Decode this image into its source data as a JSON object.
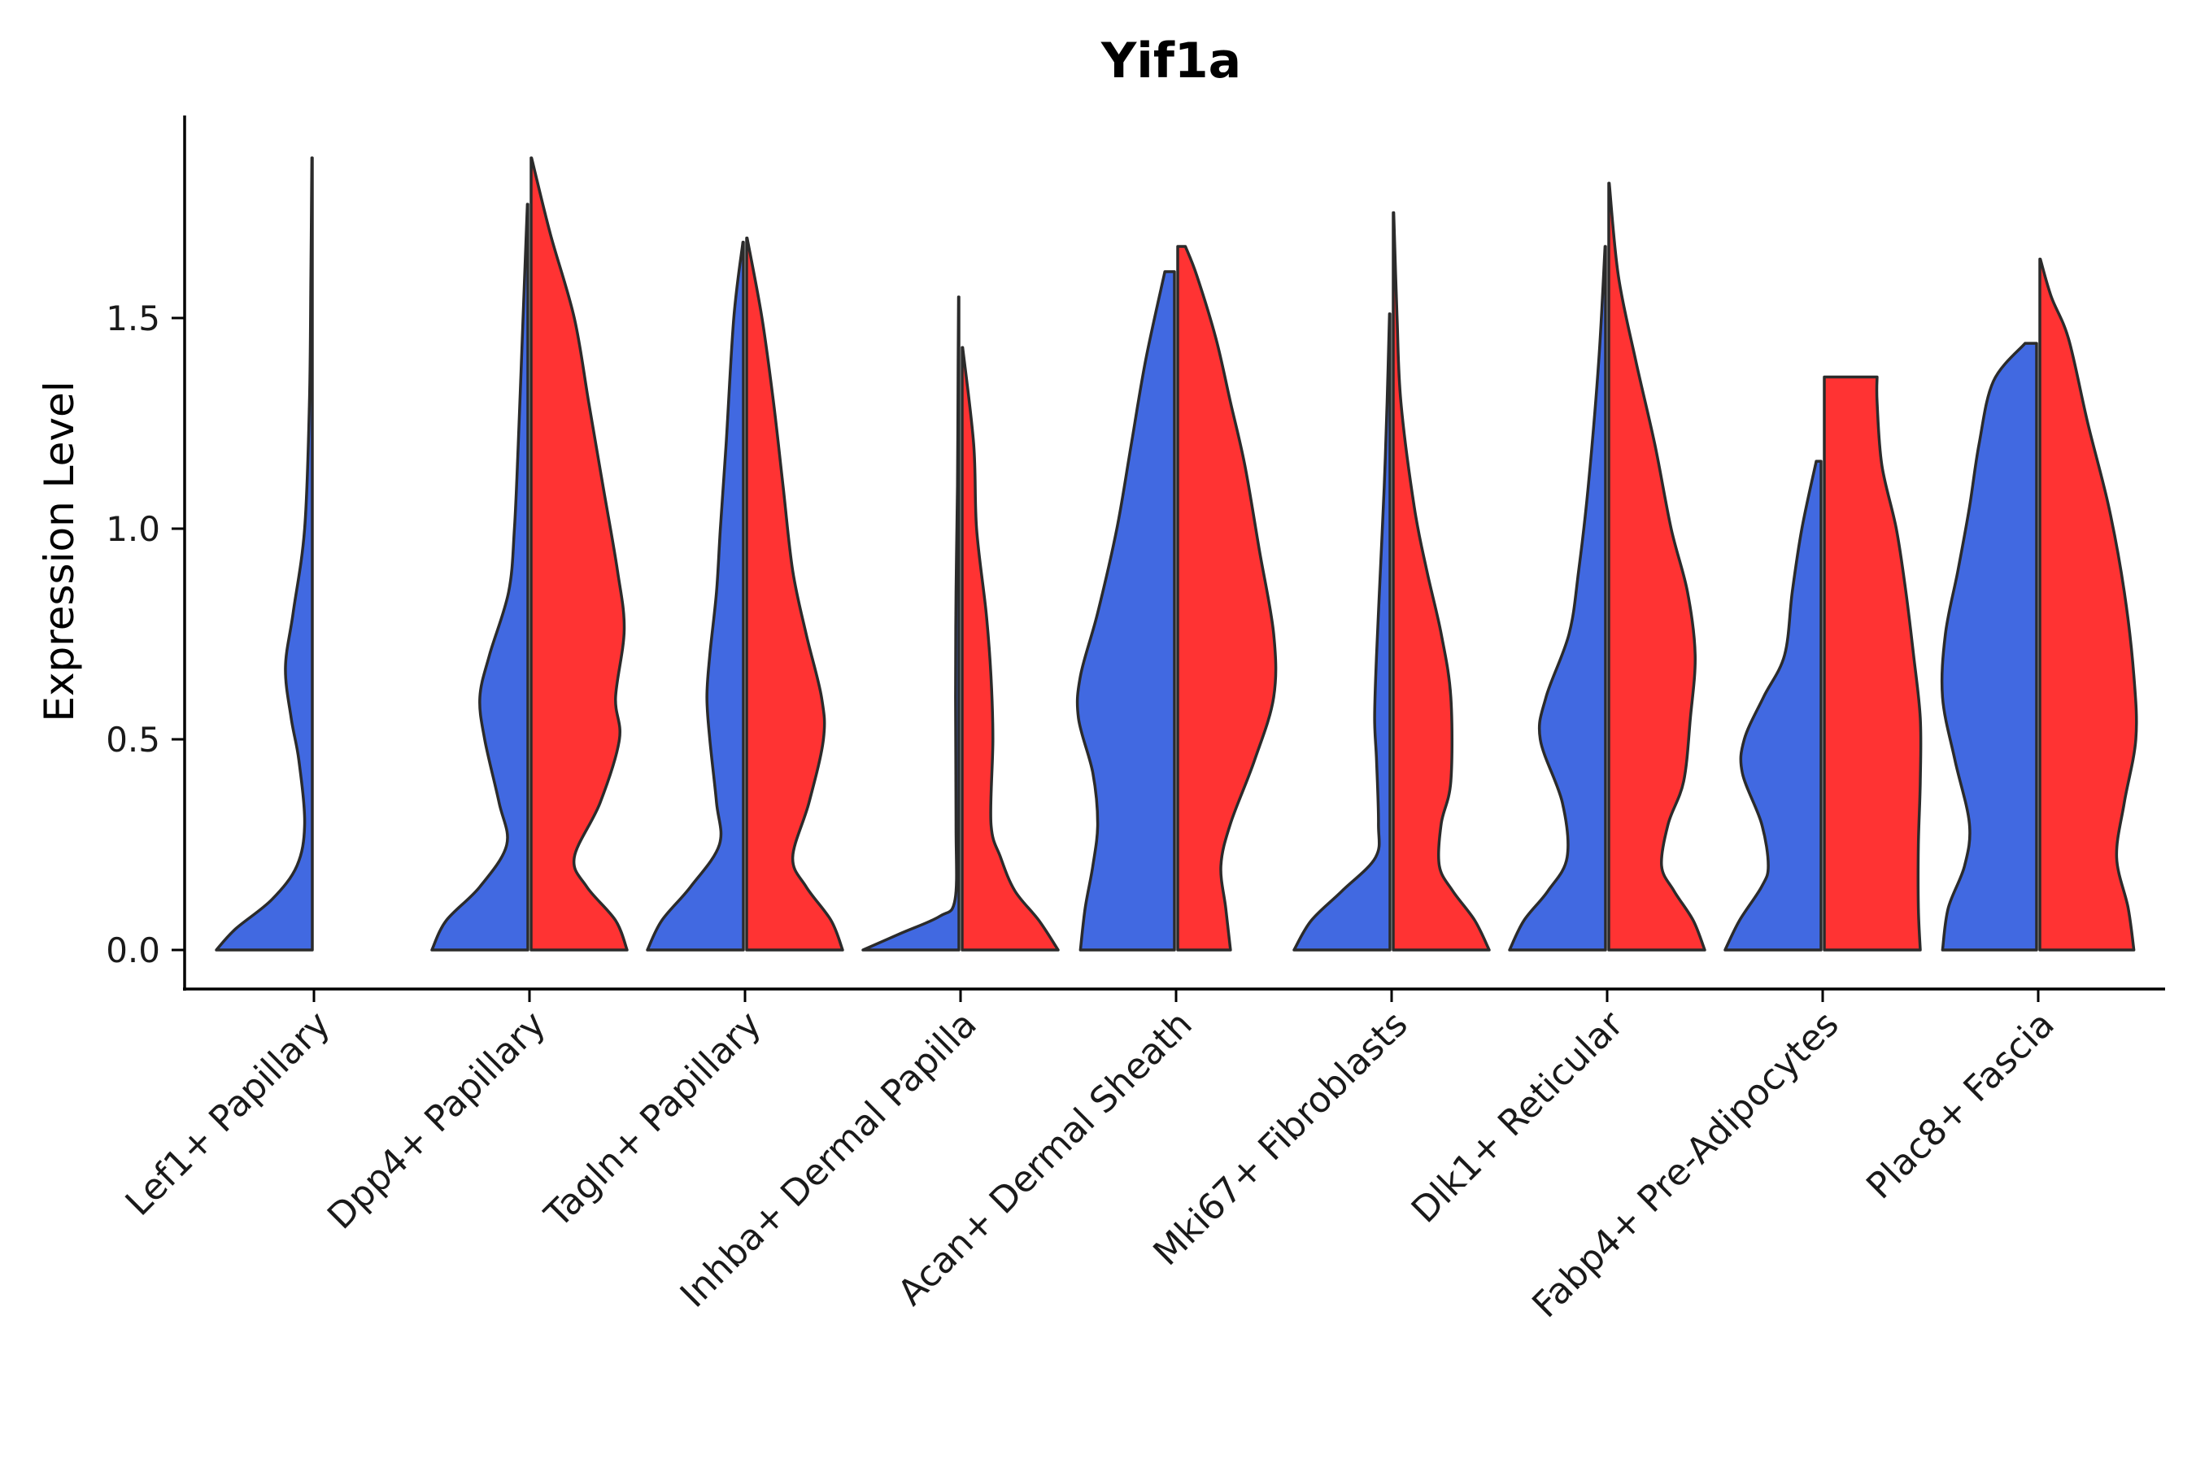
{
  "chart_data": {
    "type": "violin",
    "title": "Yif1a",
    "xlabel": "",
    "ylabel": "Expression Level",
    "ylim": [
      -0.1,
      1.97
    ],
    "yticks": [
      0.0,
      0.5,
      1.0,
      1.5
    ],
    "ytick_labels": [
      "0.0",
      "0.5",
      "1.0",
      "1.5"
    ],
    "categories": [
      "Lef1+ Papillary",
      "Dpp4+ Papillary",
      "Tagln+ Papillary",
      "Inhba+ Dermal Papilla",
      "Acan+ Dermal Sheath",
      "Mki67+ Fibroblasts",
      "Dlk1+ Reticular",
      "Fabp4+ Pre-Adipocytes",
      "Plac8+ Fascia"
    ],
    "groups": [
      {
        "name": "group1",
        "color": "#4169e1"
      },
      {
        "name": "group2",
        "color": "#ff3333"
      }
    ],
    "violins": [
      {
        "category": 0,
        "group": 0,
        "max": 1.88,
        "profile": [
          [
            0,
            1
          ],
          [
            0.05,
            0.8
          ],
          [
            0.12,
            0.42
          ],
          [
            0.2,
            0.16
          ],
          [
            0.3,
            0.08
          ],
          [
            0.45,
            0.14
          ],
          [
            0.55,
            0.22
          ],
          [
            0.67,
            0.28
          ],
          [
            0.8,
            0.2
          ],
          [
            1.0,
            0.08
          ],
          [
            1.3,
            0.03
          ],
          [
            1.6,
            0.015
          ],
          [
            1.88,
            0.005
          ]
        ]
      },
      {
        "category": 1,
        "group": 0,
        "max": 1.77,
        "profile": [
          [
            0,
            1
          ],
          [
            0.07,
            0.85
          ],
          [
            0.15,
            0.5
          ],
          [
            0.25,
            0.22
          ],
          [
            0.35,
            0.3
          ],
          [
            0.5,
            0.45
          ],
          [
            0.6,
            0.5
          ],
          [
            0.7,
            0.4
          ],
          [
            0.85,
            0.2
          ],
          [
            1.0,
            0.14
          ],
          [
            1.2,
            0.1
          ],
          [
            1.5,
            0.05
          ],
          [
            1.77,
            0.005
          ]
        ]
      },
      {
        "category": 1,
        "group": 1,
        "max": 1.88,
        "profile": [
          [
            0,
            1
          ],
          [
            0.07,
            0.88
          ],
          [
            0.15,
            0.58
          ],
          [
            0.22,
            0.45
          ],
          [
            0.35,
            0.72
          ],
          [
            0.5,
            0.92
          ],
          [
            0.6,
            0.88
          ],
          [
            0.76,
            0.97
          ],
          [
            0.9,
            0.9
          ],
          [
            1.1,
            0.75
          ],
          [
            1.3,
            0.6
          ],
          [
            1.5,
            0.45
          ],
          [
            1.7,
            0.2
          ],
          [
            1.88,
            0.005
          ]
        ]
      },
      {
        "category": 2,
        "group": 0,
        "max": 1.68,
        "profile": [
          [
            0,
            1
          ],
          [
            0.07,
            0.85
          ],
          [
            0.15,
            0.55
          ],
          [
            0.25,
            0.25
          ],
          [
            0.35,
            0.28
          ],
          [
            0.5,
            0.35
          ],
          [
            0.6,
            0.38
          ],
          [
            0.7,
            0.35
          ],
          [
            0.85,
            0.28
          ],
          [
            1.0,
            0.24
          ],
          [
            1.2,
            0.18
          ],
          [
            1.5,
            0.1
          ],
          [
            1.68,
            0.005
          ]
        ]
      },
      {
        "category": 2,
        "group": 1,
        "max": 1.69,
        "profile": [
          [
            0,
            1
          ],
          [
            0.07,
            0.88
          ],
          [
            0.15,
            0.62
          ],
          [
            0.22,
            0.48
          ],
          [
            0.35,
            0.65
          ],
          [
            0.5,
            0.8
          ],
          [
            0.6,
            0.78
          ],
          [
            0.75,
            0.62
          ],
          [
            0.9,
            0.48
          ],
          [
            1.1,
            0.38
          ],
          [
            1.3,
            0.28
          ],
          [
            1.5,
            0.16
          ],
          [
            1.69,
            0.005
          ]
        ]
      },
      {
        "category": 3,
        "group": 0,
        "max": 1.55,
        "profile": [
          [
            0,
            1
          ],
          [
            0.04,
            0.6
          ],
          [
            0.08,
            0.2
          ],
          [
            0.12,
            0.04
          ],
          [
            0.3,
            0.03
          ],
          [
            0.6,
            0.035
          ],
          [
            0.85,
            0.03
          ],
          [
            1.1,
            0.015
          ],
          [
            1.4,
            0.008
          ],
          [
            1.55,
            0.004
          ]
        ]
      },
      {
        "category": 3,
        "group": 1,
        "max": 1.43,
        "profile": [
          [
            0,
            1
          ],
          [
            0.07,
            0.8
          ],
          [
            0.14,
            0.55
          ],
          [
            0.22,
            0.4
          ],
          [
            0.3,
            0.3
          ],
          [
            0.5,
            0.32
          ],
          [
            0.65,
            0.3
          ],
          [
            0.8,
            0.25
          ],
          [
            1.0,
            0.15
          ],
          [
            1.2,
            0.12
          ],
          [
            1.43,
            0.005
          ]
        ]
      },
      {
        "category": 4,
        "group": 0,
        "max": 1.61,
        "profile": [
          [
            0,
            0.98
          ],
          [
            0.1,
            0.93
          ],
          [
            0.2,
            0.85
          ],
          [
            0.3,
            0.8
          ],
          [
            0.42,
            0.85
          ],
          [
            0.55,
            1.0
          ],
          [
            0.65,
            0.98
          ],
          [
            0.8,
            0.8
          ],
          [
            1.0,
            0.6
          ],
          [
            1.2,
            0.45
          ],
          [
            1.4,
            0.3
          ],
          [
            1.61,
            0.1
          ]
        ]
      },
      {
        "category": 4,
        "group": 1,
        "max": 1.67,
        "profile": [
          [
            0,
            0.55
          ],
          [
            0.1,
            0.5
          ],
          [
            0.2,
            0.45
          ],
          [
            0.3,
            0.55
          ],
          [
            0.45,
            0.8
          ],
          [
            0.6,
            1.0
          ],
          [
            0.75,
            1.0
          ],
          [
            0.95,
            0.85
          ],
          [
            1.15,
            0.7
          ],
          [
            1.3,
            0.55
          ],
          [
            1.45,
            0.4
          ],
          [
            1.6,
            0.2
          ],
          [
            1.67,
            0.08
          ]
        ]
      },
      {
        "category": 5,
        "group": 0,
        "max": 1.51,
        "profile": [
          [
            0,
            1
          ],
          [
            0.07,
            0.82
          ],
          [
            0.14,
            0.5
          ],
          [
            0.22,
            0.15
          ],
          [
            0.3,
            0.12
          ],
          [
            0.45,
            0.14
          ],
          [
            0.55,
            0.16
          ],
          [
            0.7,
            0.14
          ],
          [
            0.9,
            0.1
          ],
          [
            1.1,
            0.06
          ],
          [
            1.3,
            0.03
          ],
          [
            1.51,
            0.005
          ]
        ]
      },
      {
        "category": 5,
        "group": 1,
        "max": 1.75,
        "profile": [
          [
            0,
            1
          ],
          [
            0.07,
            0.85
          ],
          [
            0.14,
            0.62
          ],
          [
            0.2,
            0.48
          ],
          [
            0.3,
            0.5
          ],
          [
            0.4,
            0.6
          ],
          [
            0.6,
            0.6
          ],
          [
            0.75,
            0.5
          ],
          [
            0.9,
            0.35
          ],
          [
            1.05,
            0.22
          ],
          [
            1.3,
            0.08
          ],
          [
            1.5,
            0.04
          ],
          [
            1.75,
            0.005
          ]
        ]
      },
      {
        "category": 6,
        "group": 0,
        "max": 1.67,
        "profile": [
          [
            0,
            1
          ],
          [
            0.07,
            0.85
          ],
          [
            0.14,
            0.6
          ],
          [
            0.22,
            0.4
          ],
          [
            0.35,
            0.45
          ],
          [
            0.5,
            0.68
          ],
          [
            0.6,
            0.62
          ],
          [
            0.75,
            0.38
          ],
          [
            0.9,
            0.28
          ],
          [
            1.1,
            0.18
          ],
          [
            1.4,
            0.07
          ],
          [
            1.67,
            0.005
          ]
        ]
      },
      {
        "category": 6,
        "group": 1,
        "max": 1.82,
        "profile": [
          [
            0,
            1
          ],
          [
            0.07,
            0.88
          ],
          [
            0.14,
            0.68
          ],
          [
            0.2,
            0.55
          ],
          [
            0.3,
            0.62
          ],
          [
            0.4,
            0.78
          ],
          [
            0.55,
            0.85
          ],
          [
            0.7,
            0.9
          ],
          [
            0.85,
            0.82
          ],
          [
            1.0,
            0.65
          ],
          [
            1.2,
            0.48
          ],
          [
            1.4,
            0.28
          ],
          [
            1.6,
            0.1
          ],
          [
            1.82,
            0.005
          ]
        ]
      },
      {
        "category": 7,
        "group": 0,
        "max": 1.16,
        "profile": [
          [
            0,
            1
          ],
          [
            0.07,
            0.85
          ],
          [
            0.15,
            0.62
          ],
          [
            0.2,
            0.55
          ],
          [
            0.3,
            0.62
          ],
          [
            0.42,
            0.82
          ],
          [
            0.5,
            0.8
          ],
          [
            0.6,
            0.6
          ],
          [
            0.7,
            0.38
          ],
          [
            0.85,
            0.3
          ],
          [
            1.0,
            0.2
          ],
          [
            1.16,
            0.05
          ]
        ]
      },
      {
        "category": 7,
        "group": 1,
        "max": 1.36,
        "profile": [
          [
            0,
            1
          ],
          [
            0.1,
            0.98
          ],
          [
            0.25,
            0.98
          ],
          [
            0.4,
            1.0
          ],
          [
            0.55,
            1.0
          ],
          [
            0.7,
            0.93
          ],
          [
            0.85,
            0.85
          ],
          [
            1.0,
            0.75
          ],
          [
            1.15,
            0.6
          ],
          [
            1.3,
            0.55
          ],
          [
            1.36,
            0.55
          ]
        ]
      },
      {
        "category": 8,
        "group": 0,
        "max": 1.44,
        "profile": [
          [
            0,
            0.98
          ],
          [
            0.1,
            0.92
          ],
          [
            0.2,
            0.75
          ],
          [
            0.3,
            0.7
          ],
          [
            0.45,
            0.85
          ],
          [
            0.6,
            0.98
          ],
          [
            0.75,
            0.95
          ],
          [
            0.9,
            0.82
          ],
          [
            1.05,
            0.7
          ],
          [
            1.2,
            0.6
          ],
          [
            1.35,
            0.45
          ],
          [
            1.44,
            0.12
          ]
        ]
      },
      {
        "category": 8,
        "group": 1,
        "max": 1.64,
        "profile": [
          [
            0,
            0.98
          ],
          [
            0.1,
            0.92
          ],
          [
            0.22,
            0.8
          ],
          [
            0.35,
            0.88
          ],
          [
            0.5,
            1.0
          ],
          [
            0.65,
            0.98
          ],
          [
            0.85,
            0.88
          ],
          [
            1.05,
            0.72
          ],
          [
            1.25,
            0.5
          ],
          [
            1.45,
            0.3
          ],
          [
            1.55,
            0.12
          ],
          [
            1.64,
            0.005
          ]
        ]
      }
    ]
  }
}
